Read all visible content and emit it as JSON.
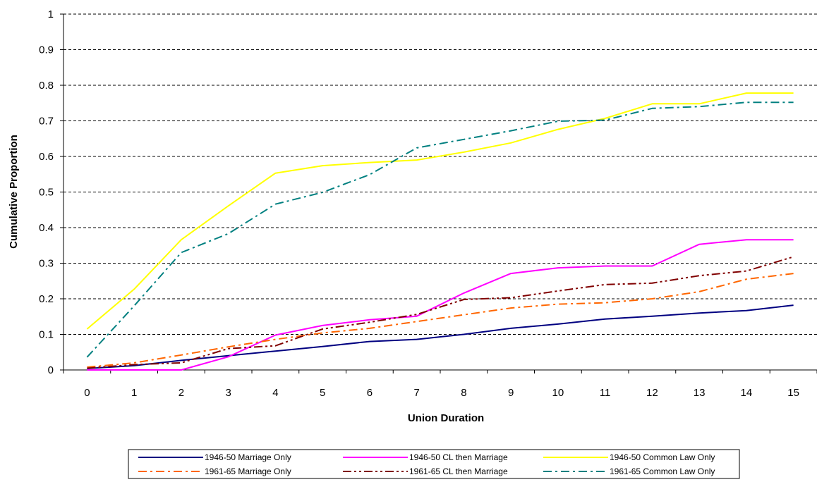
{
  "chart_data": {
    "type": "line",
    "title": "",
    "xlabel": "Union Duration",
    "ylabel": "Cumulative Proportion",
    "x": [
      0,
      1,
      2,
      3,
      4,
      5,
      6,
      7,
      8,
      9,
      10,
      11,
      12,
      13,
      14,
      15
    ],
    "xlim": [
      0,
      15
    ],
    "ylim": [
      0,
      1
    ],
    "yticks": [
      "0",
      "0.1",
      "0.2",
      "0.3",
      "0.4",
      "0.5",
      "0.6",
      "0.7",
      "0.8",
      "0.9",
      "1"
    ],
    "grid": "horizontal dashed",
    "legend_position": "bottom",
    "series": [
      {
        "name": "1946-50 Marriage Only",
        "color": "#000080",
        "dash": "solid",
        "values": [
          0.004,
          0.012,
          0.027,
          0.04,
          0.053,
          0.066,
          0.08,
          0.086,
          0.1,
          0.117,
          0.129,
          0.143,
          0.151,
          0.16,
          0.167,
          0.182
        ]
      },
      {
        "name": "1946-50 CL then Marriage",
        "color": "#ff00ff",
        "dash": "solid",
        "values": [
          0.0,
          0.0,
          0.0,
          0.037,
          0.098,
          0.125,
          0.141,
          0.151,
          0.216,
          0.271,
          0.287,
          0.292,
          0.292,
          0.353,
          0.366,
          0.366
        ]
      },
      {
        "name": "1946-50 Common Law Only",
        "color": "#ffff00",
        "dash": "solid",
        "values": [
          0.115,
          0.227,
          0.366,
          0.461,
          0.553,
          0.574,
          0.583,
          0.59,
          0.612,
          0.638,
          0.676,
          0.707,
          0.748,
          0.748,
          0.778,
          0.778
        ]
      },
      {
        "name": "1961-65 Marriage Only",
        "color": "#ff6600",
        "dash": "dashdot",
        "values": [
          0.008,
          0.02,
          0.042,
          0.065,
          0.086,
          0.104,
          0.117,
          0.136,
          0.155,
          0.174,
          0.185,
          0.189,
          0.2,
          0.22,
          0.255,
          0.271
        ]
      },
      {
        "name": "1961-65 CL then Marriage",
        "color": "#800000",
        "dash": "dashdotdot",
        "values": [
          0.005,
          0.015,
          0.02,
          0.06,
          0.068,
          0.115,
          0.134,
          0.156,
          0.198,
          0.203,
          0.222,
          0.24,
          0.244,
          0.265,
          0.278,
          0.318
        ]
      },
      {
        "name": "1961-65 Common Law Only",
        "color": "#008080",
        "dash": "dashdot",
        "values": [
          0.036,
          0.18,
          0.33,
          0.383,
          0.466,
          0.499,
          0.549,
          0.624,
          0.648,
          0.672,
          0.699,
          0.702,
          0.735,
          0.74,
          0.752,
          0.752
        ]
      }
    ]
  }
}
